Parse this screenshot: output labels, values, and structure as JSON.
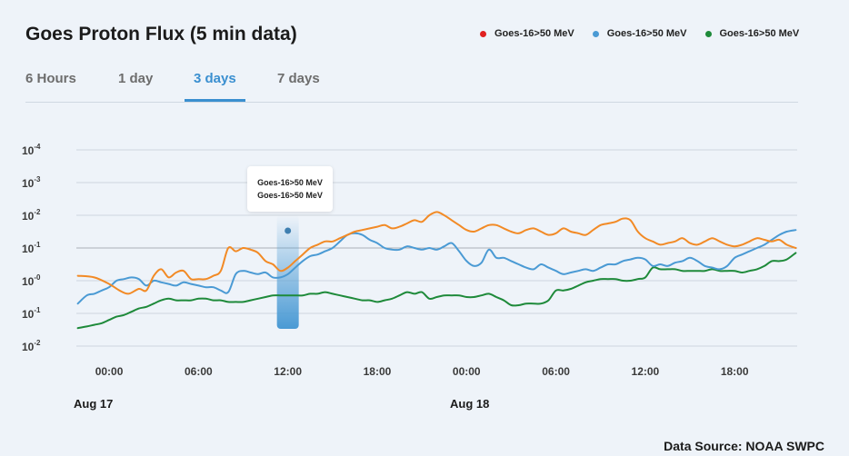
{
  "title": "Goes Proton Flux (5 min data)",
  "legend": [
    {
      "label": "Goes-16>50 MeV",
      "color": "#e02020"
    },
    {
      "label": "Goes-16>50 MeV",
      "color": "#4a9ad4"
    },
    {
      "label": "Goes-16>50 MeV",
      "color": "#1e8a3a"
    }
  ],
  "tabs": [
    {
      "label": "6 Hours",
      "active": false
    },
    {
      "label": "1 day",
      "active": false
    },
    {
      "label": "3 days",
      "active": true
    },
    {
      "label": "7 days",
      "active": false
    }
  ],
  "tooltip": {
    "lines": [
      "Goes-16>50 MeV",
      "Goes-16>50 MeV"
    ]
  },
  "source": "Data Source: NOAA SWPC",
  "date_labels": [
    "Aug 17",
    "Aug 18"
  ],
  "chart_data": {
    "type": "line",
    "y_scale": "log",
    "y_ticks": [
      {
        "base": "10",
        "exp": "-4",
        "value": 4
      },
      {
        "base": "10",
        "exp": "-3",
        "value": 3
      },
      {
        "base": "10",
        "exp": "-2",
        "value": 2
      },
      {
        "base": "10",
        "exp": "-1",
        "value": 1
      },
      {
        "base": "10",
        "exp": "-0",
        "value": 0
      },
      {
        "base": "10",
        "exp": "-1",
        "value": -1
      },
      {
        "base": "10",
        "exp": "-2",
        "value": -2
      }
    ],
    "x_ticks": [
      {
        "label": "00:00",
        "value": 0
      },
      {
        "label": "06:00",
        "value": 6
      },
      {
        "label": "12:00",
        "value": 12
      },
      {
        "label": "18:00",
        "value": 18
      },
      {
        "label": "00:00",
        "value": 24
      },
      {
        "label": "06:00",
        "value": 30
      },
      {
        "label": "12:00",
        "value": 36
      },
      {
        "label": "18:00",
        "value": 42
      }
    ],
    "xlim": [
      -2.2,
      46.2
    ],
    "ylim": [
      -2,
      4
    ],
    "grid": true,
    "series": [
      {
        "name": "Goes-16>50 MeV",
        "color": "#f28a25",
        "x": [
          -2.1,
          -1,
          0,
          0.7,
          1.3,
          2,
          2.5,
          3,
          3.5,
          4,
          4.5,
          5,
          5.5,
          6,
          6.5,
          7,
          7.5,
          8,
          8.5,
          9,
          9.5,
          10,
          10.5,
          11,
          11.5,
          12,
          12.5,
          13,
          13.5,
          14,
          14.5,
          15,
          15.5,
          16,
          16.5,
          17,
          17.5,
          18,
          18.5,
          19,
          19.5,
          20,
          20.5,
          21,
          21.5,
          22,
          22.5,
          23,
          23.5,
          24,
          24.5,
          25,
          25.5,
          26,
          26.5,
          27,
          27.5,
          28,
          28.5,
          29,
          29.5,
          30,
          30.5,
          31,
          31.5,
          32,
          32.5,
          33,
          33.5,
          34,
          34.5,
          35,
          35.5,
          36,
          36.5,
          37,
          37.5,
          38,
          38.5,
          39,
          39.5,
          40,
          40.5,
          41,
          41.5,
          42,
          42.5,
          43,
          43.5,
          44,
          44.5,
          45,
          45.5,
          46.1
        ],
        "y": [
          0.15,
          0.1,
          -0.1,
          -0.3,
          -0.4,
          -0.25,
          -0.3,
          0.15,
          0.35,
          0.1,
          0.25,
          0.3,
          0.05,
          0.05,
          0.05,
          0.15,
          0.3,
          1.0,
          0.9,
          1.0,
          0.95,
          0.85,
          0.6,
          0.5,
          0.3,
          0.4,
          0.6,
          0.8,
          1.0,
          1.1,
          1.2,
          1.2,
          1.3,
          1.4,
          1.5,
          1.55,
          1.6,
          1.65,
          1.7,
          1.6,
          1.65,
          1.75,
          1.85,
          1.8,
          2.0,
          2.1,
          2.0,
          1.85,
          1.7,
          1.55,
          1.5,
          1.6,
          1.7,
          1.7,
          1.6,
          1.5,
          1.45,
          1.55,
          1.6,
          1.5,
          1.4,
          1.45,
          1.6,
          1.5,
          1.45,
          1.4,
          1.55,
          1.7,
          1.75,
          1.8,
          1.9,
          1.85,
          1.5,
          1.3,
          1.2,
          1.1,
          1.15,
          1.2,
          1.3,
          1.15,
          1.1,
          1.2,
          1.3,
          1.2,
          1.1,
          1.05,
          1.1,
          1.2,
          1.3,
          1.25,
          1.2,
          1.25,
          1.1,
          1.0
        ]
      },
      {
        "name": "Goes-16>50 MeV",
        "color": "#4a9ad4",
        "x": [
          -2.1,
          -1.5,
          -1,
          -0.5,
          0,
          0.5,
          1,
          1.5,
          2,
          2.5,
          3,
          3.5,
          4,
          4.5,
          5,
          5.5,
          6,
          6.5,
          7,
          7.5,
          8,
          8.5,
          9,
          9.5,
          10,
          10.5,
          11,
          11.5,
          12,
          12.5,
          13,
          13.5,
          14,
          14.5,
          15,
          15.5,
          16,
          16.5,
          17,
          17.5,
          18,
          18.5,
          19,
          19.5,
          20,
          20.5,
          21,
          21.5,
          22,
          22.5,
          23,
          23.5,
          24,
          24.5,
          25,
          25.5,
          26,
          26.5,
          27,
          27.5,
          28,
          28.5,
          29,
          29.5,
          30,
          30.5,
          31,
          31.5,
          32,
          32.5,
          33,
          33.5,
          34,
          34.5,
          35,
          35.5,
          36,
          36.5,
          37,
          37.5,
          38,
          38.5,
          39,
          39.5,
          40,
          40.5,
          41,
          41.5,
          42,
          42.5,
          43,
          43.5,
          44,
          44.5,
          45,
          45.5,
          46.1
        ],
        "y": [
          -0.7,
          -0.45,
          -0.4,
          -0.3,
          -0.2,
          0.0,
          0.05,
          0.1,
          0.05,
          -0.15,
          0.0,
          -0.05,
          -0.1,
          -0.15,
          -0.05,
          -0.1,
          -0.15,
          -0.2,
          -0.2,
          -0.3,
          -0.35,
          0.2,
          0.3,
          0.25,
          0.2,
          0.25,
          0.1,
          0.1,
          0.2,
          0.4,
          0.6,
          0.75,
          0.8,
          0.9,
          1.0,
          1.2,
          1.4,
          1.45,
          1.4,
          1.25,
          1.15,
          1.0,
          0.95,
          0.95,
          1.05,
          1.0,
          0.95,
          1.0,
          0.95,
          1.05,
          1.15,
          0.9,
          0.6,
          0.45,
          0.55,
          0.95,
          0.7,
          0.7,
          0.6,
          0.5,
          0.4,
          0.35,
          0.5,
          0.4,
          0.3,
          0.2,
          0.25,
          0.3,
          0.35,
          0.3,
          0.4,
          0.5,
          0.5,
          0.6,
          0.65,
          0.7,
          0.65,
          0.45,
          0.5,
          0.45,
          0.55,
          0.6,
          0.7,
          0.6,
          0.45,
          0.4,
          0.35,
          0.45,
          0.7,
          0.8,
          0.9,
          1.0,
          1.1,
          1.25,
          1.4,
          1.5,
          1.55
        ]
      },
      {
        "name": "Goes-16>50 MeV",
        "color": "#1e8a3a",
        "x": [
          -2.1,
          -1.5,
          -1,
          -0.5,
          0,
          0.5,
          1,
          1.5,
          2,
          2.5,
          3,
          3.5,
          4,
          4.5,
          5,
          5.5,
          6,
          6.5,
          7,
          7.5,
          8,
          8.5,
          9,
          9.5,
          10,
          10.5,
          11,
          11.5,
          12,
          12.5,
          13,
          13.5,
          14,
          14.5,
          15,
          15.5,
          16,
          16.5,
          17,
          17.5,
          18,
          18.5,
          19,
          19.5,
          20,
          20.5,
          21,
          21.5,
          22,
          22.5,
          23,
          23.5,
          24,
          24.5,
          25,
          25.5,
          26,
          26.5,
          27,
          27.5,
          28,
          28.5,
          29,
          29.5,
          30,
          30.5,
          31,
          31.5,
          32,
          32.5,
          33,
          33.5,
          34,
          34.5,
          35,
          35.5,
          36,
          36.5,
          37,
          37.5,
          38,
          38.5,
          39,
          39.5,
          40,
          40.5,
          41,
          41.5,
          42,
          42.5,
          43,
          43.5,
          44,
          44.5,
          45,
          45.5,
          46.1
        ],
        "y": [
          -1.45,
          -1.4,
          -1.35,
          -1.3,
          -1.2,
          -1.1,
          -1.05,
          -0.95,
          -0.85,
          -0.8,
          -0.7,
          -0.6,
          -0.55,
          -0.6,
          -0.6,
          -0.6,
          -0.55,
          -0.55,
          -0.6,
          -0.6,
          -0.65,
          -0.65,
          -0.65,
          -0.6,
          -0.55,
          -0.5,
          -0.45,
          -0.45,
          -0.45,
          -0.45,
          -0.45,
          -0.4,
          -0.4,
          -0.35,
          -0.4,
          -0.45,
          -0.5,
          -0.55,
          -0.6,
          -0.6,
          -0.65,
          -0.6,
          -0.55,
          -0.45,
          -0.35,
          -0.4,
          -0.35,
          -0.55,
          -0.5,
          -0.45,
          -0.45,
          -0.45,
          -0.5,
          -0.5,
          -0.45,
          -0.4,
          -0.5,
          -0.6,
          -0.75,
          -0.75,
          -0.7,
          -0.7,
          -0.7,
          -0.6,
          -0.3,
          -0.3,
          -0.25,
          -0.15,
          -0.05,
          0.0,
          0.05,
          0.05,
          0.05,
          0.0,
          0.0,
          0.05,
          0.1,
          0.4,
          0.35,
          0.35,
          0.35,
          0.3,
          0.3,
          0.3,
          0.3,
          0.35,
          0.3,
          0.3,
          0.3,
          0.25,
          0.3,
          0.35,
          0.45,
          0.6,
          0.6,
          0.65,
          0.85
        ]
      }
    ],
    "highlight": {
      "x": 12.0,
      "y": 1.0
    }
  }
}
